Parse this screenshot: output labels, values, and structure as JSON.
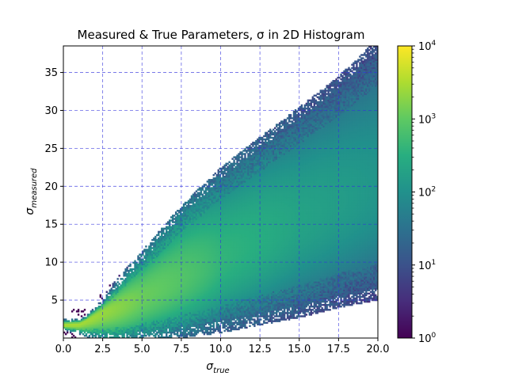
{
  "chart_data": {
    "type": "heatmap",
    "title": "Measured & True Parameters, σ in 2D Histogram",
    "xlabel": {
      "symbol": "σ",
      "subscript": "true"
    },
    "ylabel": {
      "symbol": "σ",
      "subscript": "measured"
    },
    "xlim": [
      0,
      20
    ],
    "ylim": [
      0,
      38.5
    ],
    "xticks": [
      "0.0",
      "2.5",
      "5.0",
      "7.5",
      "10.0",
      "12.5",
      "15.0",
      "17.5",
      "20.0"
    ],
    "xtick_values": [
      0,
      2.5,
      5,
      7.5,
      10,
      12.5,
      15,
      17.5,
      20
    ],
    "yticks": [
      "5",
      "10",
      "15",
      "20",
      "25",
      "30",
      "35"
    ],
    "ytick_values": [
      5,
      10,
      15,
      20,
      25,
      30,
      35
    ],
    "grid": true,
    "grid_color": "#3333dd",
    "colormap": "viridis",
    "colorbar": {
      "scale": "log",
      "range": [
        1,
        10000
      ],
      "ticks": [
        {
          "value": 1,
          "base": "10",
          "exp": "0"
        },
        {
          "value": 10,
          "base": "10",
          "exp": "1"
        },
        {
          "value": 100,
          "base": "10",
          "exp": "2"
        },
        {
          "value": 1000,
          "base": "10",
          "exp": "3"
        },
        {
          "value": 10000,
          "base": "10",
          "exp": "4"
        }
      ]
    },
    "density_model": {
      "ridge": [
        [
          0,
          1.7
        ],
        [
          1,
          1.8
        ],
        [
          2.5,
          3.4
        ],
        [
          5,
          5.3
        ],
        [
          7.5,
          7.8
        ],
        [
          10,
          10.3
        ],
        [
          12.5,
          12.9
        ],
        [
          15,
          15.5
        ],
        [
          17.5,
          17.8
        ],
        [
          20,
          19.8
        ]
      ],
      "upper_edge": [
        [
          0,
          2.2
        ],
        [
          1.2,
          2.3
        ],
        [
          2.5,
          4.5
        ],
        [
          5,
          10
        ],
        [
          7.5,
          16
        ],
        [
          10,
          21
        ],
        [
          12.5,
          25
        ],
        [
          15,
          29
        ],
        [
          17.5,
          33
        ],
        [
          20,
          38
        ]
      ],
      "lower_edge": [
        [
          0,
          1.3
        ],
        [
          1.5,
          0.8
        ],
        [
          3.5,
          0.5
        ],
        [
          5,
          0.8
        ],
        [
          7.5,
          1.5
        ],
        [
          10,
          2.2
        ],
        [
          12.5,
          3.2
        ],
        [
          15,
          4.2
        ],
        [
          17.5,
          5.5
        ],
        [
          20,
          6.5
        ]
      ],
      "peak_counts": [
        [
          0,
          3000
        ],
        [
          2,
          2500
        ],
        [
          5,
          1200
        ],
        [
          10,
          400
        ],
        [
          15,
          200
        ],
        [
          20,
          120
        ]
      ]
    }
  }
}
